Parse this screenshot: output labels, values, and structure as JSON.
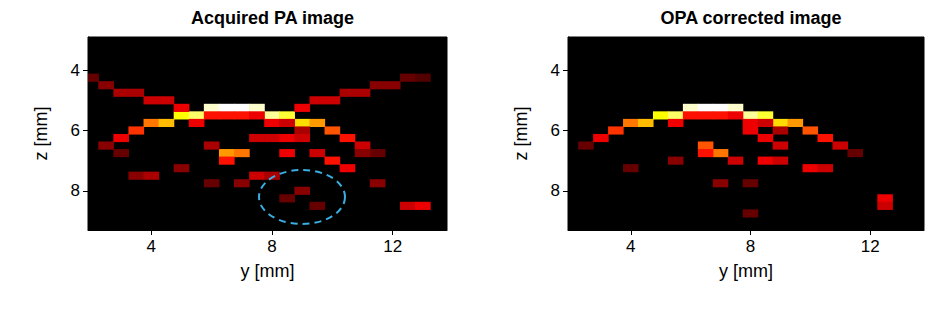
{
  "chart_data": [
    {
      "type": "heatmap",
      "title": "Acquired PA image",
      "x_label": "y [mm]",
      "y_label": "z [mm]",
      "xlim": [
        1.9,
        13.8
      ],
      "ylim": [
        9.3,
        2.9
      ],
      "xticks": [
        4,
        8,
        12
      ],
      "yticks": [
        4,
        6,
        8
      ],
      "grid": false,
      "clim": [
        0,
        1
      ],
      "cells": [
        [
          2.5,
          6.5,
          0.2
        ],
        [
          3,
          6.25,
          0.35
        ],
        [
          3.5,
          6.0,
          0.45
        ],
        [
          4,
          5.75,
          0.55
        ],
        [
          4.5,
          5.75,
          0.65
        ],
        [
          5,
          5.5,
          0.75
        ],
        [
          5.5,
          5.5,
          0.85
        ],
        [
          6,
          5.25,
          0.95
        ],
        [
          6.5,
          5.25,
          1
        ],
        [
          7,
          5.25,
          1
        ],
        [
          7.5,
          5.25,
          0.95
        ],
        [
          8,
          5.5,
          0.9
        ],
        [
          8.5,
          5.5,
          0.8
        ],
        [
          9,
          5.75,
          0.7
        ],
        [
          9.5,
          5.75,
          0.6
        ],
        [
          10,
          6.0,
          0.5
        ],
        [
          10.5,
          6.25,
          0.4
        ],
        [
          11,
          6.5,
          0.3
        ],
        [
          11.5,
          6.75,
          0.15
        ],
        [
          5.5,
          5.75,
          0.35
        ],
        [
          6,
          5.5,
          0.4
        ],
        [
          6.5,
          5.5,
          0.4
        ],
        [
          7,
          5.5,
          0.4
        ],
        [
          7.5,
          5.5,
          0.35
        ],
        [
          8,
          5.75,
          0.35
        ],
        [
          8.5,
          5.75,
          0.3
        ],
        [
          9,
          6.0,
          0.25
        ],
        [
          2,
          4.25,
          0.15
        ],
        [
          2.5,
          4.5,
          0.2
        ],
        [
          3,
          4.75,
          0.25
        ],
        [
          3.5,
          4.75,
          0.25
        ],
        [
          4,
          5.0,
          0.3
        ],
        [
          4.5,
          5.0,
          0.3
        ],
        [
          5,
          5.25,
          0.35
        ],
        [
          9,
          5.25,
          0.35
        ],
        [
          9.5,
          5.0,
          0.3
        ],
        [
          10,
          5.0,
          0.3
        ],
        [
          10.5,
          4.75,
          0.25
        ],
        [
          11,
          4.75,
          0.25
        ],
        [
          11.5,
          4.5,
          0.2
        ],
        [
          12,
          4.5,
          0.2
        ],
        [
          12.5,
          4.25,
          0.15
        ],
        [
          13,
          4.25,
          0.12
        ],
        [
          6.5,
          6.75,
          0.6
        ],
        [
          7,
          6.75,
          0.55
        ],
        [
          6.5,
          7.0,
          0.4
        ],
        [
          8.5,
          6.75,
          0.35
        ],
        [
          9.5,
          6.75,
          0.3
        ],
        [
          10,
          7.0,
          0.4
        ],
        [
          10.5,
          7.25,
          0.35
        ],
        [
          8,
          6.25,
          0.3
        ],
        [
          8.5,
          6.25,
          0.35
        ],
        [
          9,
          6.25,
          0.3
        ],
        [
          5,
          7.25,
          0.2
        ],
        [
          3.5,
          7.5,
          0.2
        ],
        [
          4,
          7.5,
          0.25
        ],
        [
          11.5,
          7.75,
          0.2
        ],
        [
          12.5,
          8.5,
          0.3
        ],
        [
          13,
          8.5,
          0.35
        ],
        [
          7.5,
          7.5,
          0.3
        ],
        [
          8,
          7.5,
          0.25
        ],
        [
          7,
          7.75,
          0.2
        ],
        [
          9,
          8.0,
          0.2
        ],
        [
          8.5,
          8.25,
          0.15
        ],
        [
          9.5,
          8.5,
          0.15
        ],
        [
          6,
          7.75,
          0.15
        ],
        [
          3,
          6.75,
          0.15
        ],
        [
          11,
          6.75,
          0.2
        ],
        [
          7.5,
          6.25,
          0.3
        ],
        [
          6,
          6.5,
          0.25
        ]
      ]
    },
    {
      "type": "heatmap",
      "title": "OPA corrected image",
      "x_label": "y [mm]",
      "y_label": "z [mm]",
      "xlim": [
        1.9,
        13.8
      ],
      "ylim": [
        9.3,
        2.9
      ],
      "xticks": [
        4,
        8,
        12
      ],
      "yticks": [
        4,
        6,
        8
      ],
      "grid": false,
      "clim": [
        0,
        1
      ],
      "cells": [
        [
          2.5,
          6.5,
          0.15
        ],
        [
          3,
          6.25,
          0.35
        ],
        [
          3.5,
          6.0,
          0.45
        ],
        [
          4,
          5.75,
          0.55
        ],
        [
          4.5,
          5.75,
          0.65
        ],
        [
          5,
          5.5,
          0.75
        ],
        [
          5.5,
          5.5,
          0.85
        ],
        [
          6,
          5.25,
          0.95
        ],
        [
          6.5,
          5.25,
          1
        ],
        [
          7,
          5.25,
          1
        ],
        [
          7.5,
          5.25,
          0.95
        ],
        [
          8,
          5.5,
          0.9
        ],
        [
          8.5,
          5.5,
          0.8
        ],
        [
          9,
          5.75,
          0.7
        ],
        [
          9.5,
          5.75,
          0.6
        ],
        [
          10,
          6.0,
          0.5
        ],
        [
          10.5,
          6.25,
          0.4
        ],
        [
          11,
          6.5,
          0.3
        ],
        [
          11.5,
          6.75,
          0.15
        ],
        [
          5.5,
          5.75,
          0.35
        ],
        [
          6,
          5.5,
          0.4
        ],
        [
          6.5,
          5.5,
          0.4
        ],
        [
          7,
          5.5,
          0.4
        ],
        [
          7.5,
          5.5,
          0.35
        ],
        [
          8,
          5.75,
          0.35
        ],
        [
          8.5,
          5.75,
          0.3
        ],
        [
          9,
          6.0,
          0.25
        ],
        [
          6.5,
          6.5,
          0.5
        ],
        [
          7,
          6.75,
          0.55
        ],
        [
          6.5,
          6.75,
          0.4
        ],
        [
          8,
          6.0,
          0.35
        ],
        [
          8.5,
          6.25,
          0.35
        ],
        [
          9,
          6.5,
          0.3
        ],
        [
          7.5,
          7.0,
          0.3
        ],
        [
          8.5,
          7.0,
          0.35
        ],
        [
          9,
          7.0,
          0.3
        ],
        [
          10,
          7.25,
          0.35
        ],
        [
          10.5,
          7.25,
          0.3
        ],
        [
          5.5,
          7.0,
          0.2
        ],
        [
          4,
          7.25,
          0.15
        ],
        [
          7,
          7.75,
          0.2
        ],
        [
          8,
          7.75,
          0.15
        ],
        [
          12.5,
          8.25,
          0.35
        ],
        [
          12.5,
          8.5,
          0.3
        ],
        [
          8,
          8.75,
          0.15
        ]
      ]
    }
  ]
}
